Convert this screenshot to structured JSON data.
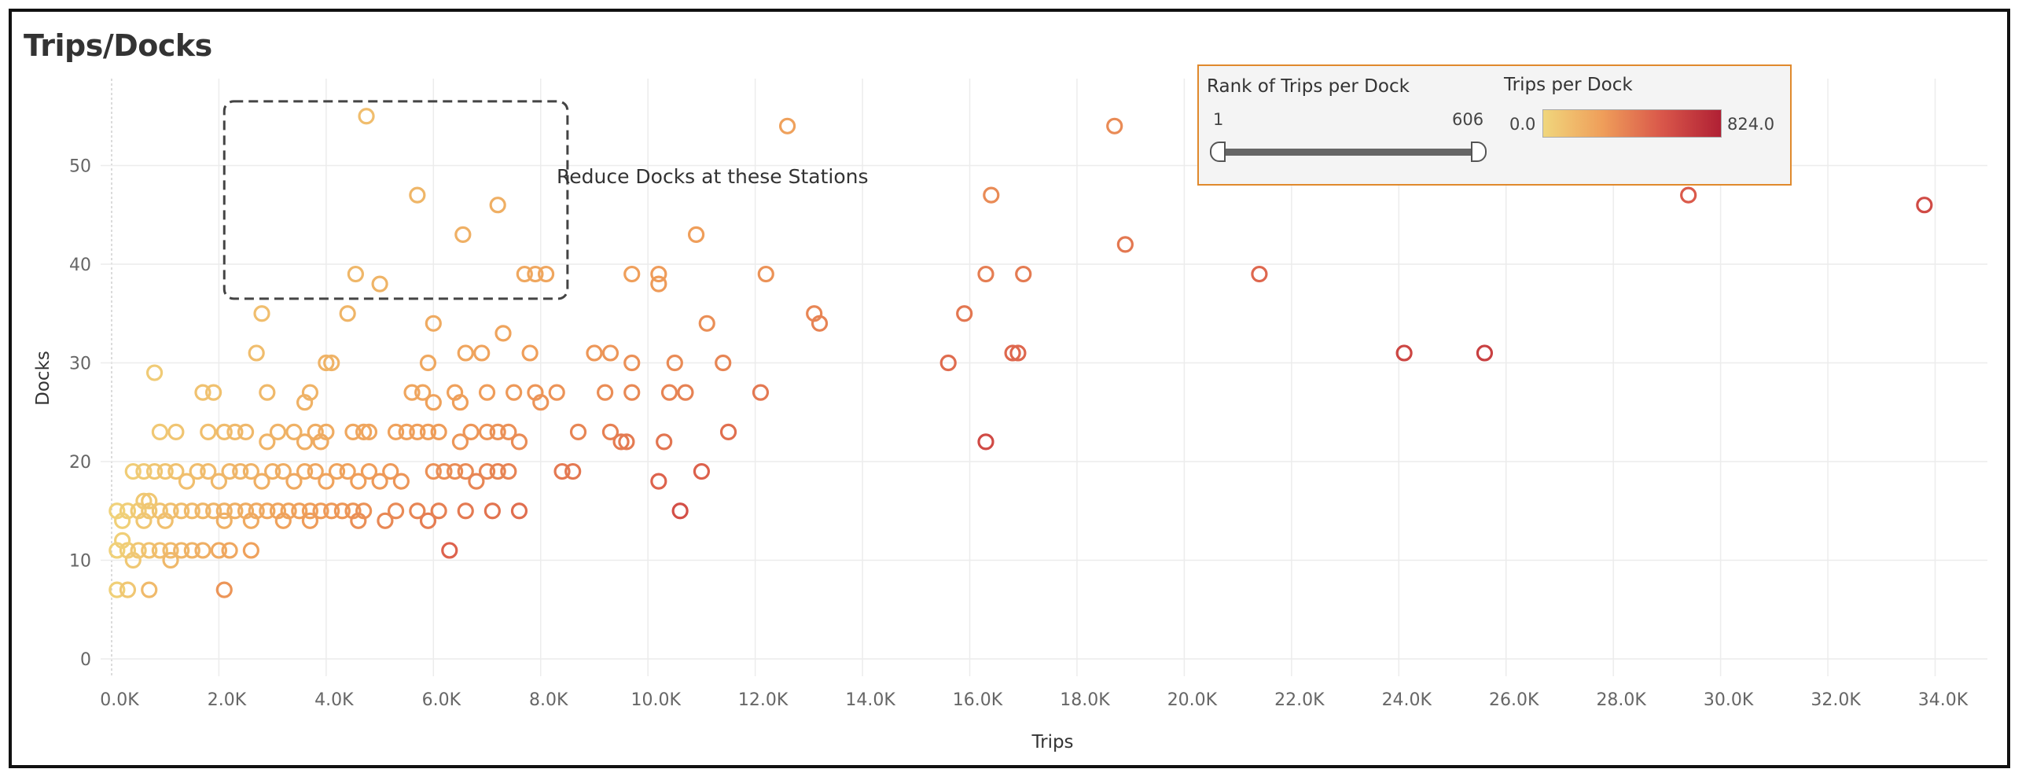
{
  "title": "Trips/Docks",
  "annotation": "Reduce Docks at these Stations",
  "legend": {
    "rank_title": "Rank of Trips per Dock",
    "rank_min": "1",
    "rank_max": "606",
    "color_title": "Trips per Dock",
    "color_min": "0.0",
    "color_max": "824.0"
  },
  "colors": {
    "low": "#f0d67c",
    "mid": "#ef9e5a",
    "high": "#d9574a",
    "max": "#b02034",
    "legend_border": "#e0892c",
    "annotation_box": "#444444"
  },
  "chart_data": {
    "type": "scatter",
    "title": "Trips/Docks",
    "xlabel": "Trips",
    "ylabel": "Docks",
    "xlim": [
      0,
      35500
    ],
    "ylim": [
      -2,
      58
    ],
    "x_ticks": [
      "0.0K",
      "2.0K",
      "4.0K",
      "6.0K",
      "8.0K",
      "10.0K",
      "12.0K",
      "14.0K",
      "16.0K",
      "18.0K",
      "20.0K",
      "22.0K",
      "24.0K",
      "26.0K",
      "28.0K",
      "30.0K",
      "32.0K",
      "34.0K"
    ],
    "y_ticks": [
      "0",
      "10",
      "20",
      "30",
      "40",
      "50"
    ],
    "grid": true,
    "marker": "hollow-circle",
    "color_by": "Trips per Dock",
    "highlight_region": {
      "x": [
        2100,
        8500
      ],
      "y": [
        36.5,
        56.5
      ]
    },
    "points": [
      {
        "x": 4750,
        "y": 55
      },
      {
        "x": 5700,
        "y": 47
      },
      {
        "x": 6550,
        "y": 43
      },
      {
        "x": 7200,
        "y": 46
      },
      {
        "x": 4550,
        "y": 39
      },
      {
        "x": 5000,
        "y": 38
      },
      {
        "x": 7700,
        "y": 39
      },
      {
        "x": 7900,
        "y": 39
      },
      {
        "x": 8100,
        "y": 39
      },
      {
        "x": 2800,
        "y": 35
      },
      {
        "x": 4400,
        "y": 35
      },
      {
        "x": 6000,
        "y": 34
      },
      {
        "x": 2700,
        "y": 31
      },
      {
        "x": 4000,
        "y": 30
      },
      {
        "x": 4100,
        "y": 30
      },
      {
        "x": 5900,
        "y": 30
      },
      {
        "x": 6600,
        "y": 31
      },
      {
        "x": 6900,
        "y": 31
      },
      {
        "x": 7300,
        "y": 33
      },
      {
        "x": 7800,
        "y": 31
      },
      {
        "x": 800,
        "y": 29
      },
      {
        "x": 1700,
        "y": 27
      },
      {
        "x": 1900,
        "y": 27
      },
      {
        "x": 2900,
        "y": 27
      },
      {
        "x": 3700,
        "y": 27
      },
      {
        "x": 5600,
        "y": 27
      },
      {
        "x": 5800,
        "y": 27
      },
      {
        "x": 6400,
        "y": 27
      },
      {
        "x": 7000,
        "y": 27
      },
      {
        "x": 7500,
        "y": 27
      },
      {
        "x": 7900,
        "y": 27
      },
      {
        "x": 8300,
        "y": 27
      },
      {
        "x": 8000,
        "y": 26
      },
      {
        "x": 6000,
        "y": 26
      },
      {
        "x": 6500,
        "y": 26
      },
      {
        "x": 3600,
        "y": 26
      },
      {
        "x": 900,
        "y": 23
      },
      {
        "x": 1200,
        "y": 23
      },
      {
        "x": 1800,
        "y": 23
      },
      {
        "x": 2100,
        "y": 23
      },
      {
        "x": 2300,
        "y": 23
      },
      {
        "x": 2500,
        "y": 23
      },
      {
        "x": 2900,
        "y": 22
      },
      {
        "x": 3100,
        "y": 23
      },
      {
        "x": 3400,
        "y": 23
      },
      {
        "x": 3600,
        "y": 22
      },
      {
        "x": 3800,
        "y": 23
      },
      {
        "x": 3900,
        "y": 22
      },
      {
        "x": 4000,
        "y": 23
      },
      {
        "x": 4500,
        "y": 23
      },
      {
        "x": 4700,
        "y": 23
      },
      {
        "x": 4800,
        "y": 23
      },
      {
        "x": 5300,
        "y": 23
      },
      {
        "x": 5500,
        "y": 23
      },
      {
        "x": 5700,
        "y": 23
      },
      {
        "x": 5900,
        "y": 23
      },
      {
        "x": 6100,
        "y": 23
      },
      {
        "x": 6500,
        "y": 22
      },
      {
        "x": 6700,
        "y": 23
      },
      {
        "x": 7000,
        "y": 23
      },
      {
        "x": 7200,
        "y": 23
      },
      {
        "x": 7400,
        "y": 23
      },
      {
        "x": 7600,
        "y": 22
      },
      {
        "x": 8700,
        "y": 23
      },
      {
        "x": 400,
        "y": 19
      },
      {
        "x": 600,
        "y": 19
      },
      {
        "x": 800,
        "y": 19
      },
      {
        "x": 1000,
        "y": 19
      },
      {
        "x": 1200,
        "y": 19
      },
      {
        "x": 1400,
        "y": 18
      },
      {
        "x": 1600,
        "y": 19
      },
      {
        "x": 1800,
        "y": 19
      },
      {
        "x": 2000,
        "y": 18
      },
      {
        "x": 2200,
        "y": 19
      },
      {
        "x": 2400,
        "y": 19
      },
      {
        "x": 2600,
        "y": 19
      },
      {
        "x": 2800,
        "y": 18
      },
      {
        "x": 3000,
        "y": 19
      },
      {
        "x": 3200,
        "y": 19
      },
      {
        "x": 3400,
        "y": 18
      },
      {
        "x": 3600,
        "y": 19
      },
      {
        "x": 3800,
        "y": 19
      },
      {
        "x": 4000,
        "y": 18
      },
      {
        "x": 4200,
        "y": 19
      },
      {
        "x": 4400,
        "y": 19
      },
      {
        "x": 4600,
        "y": 18
      },
      {
        "x": 4800,
        "y": 19
      },
      {
        "x": 5000,
        "y": 18
      },
      {
        "x": 5200,
        "y": 19
      },
      {
        "x": 5400,
        "y": 18
      },
      {
        "x": 6000,
        "y": 19
      },
      {
        "x": 6200,
        "y": 19
      },
      {
        "x": 6400,
        "y": 19
      },
      {
        "x": 6600,
        "y": 19
      },
      {
        "x": 6800,
        "y": 18
      },
      {
        "x": 7000,
        "y": 19
      },
      {
        "x": 7200,
        "y": 19
      },
      {
        "x": 7400,
        "y": 19
      },
      {
        "x": 8400,
        "y": 19
      },
      {
        "x": 8600,
        "y": 19
      },
      {
        "x": 100,
        "y": 15
      },
      {
        "x": 300,
        "y": 15
      },
      {
        "x": 500,
        "y": 15
      },
      {
        "x": 700,
        "y": 15
      },
      {
        "x": 900,
        "y": 15
      },
      {
        "x": 1100,
        "y": 15
      },
      {
        "x": 1300,
        "y": 15
      },
      {
        "x": 1500,
        "y": 15
      },
      {
        "x": 1700,
        "y": 15
      },
      {
        "x": 1900,
        "y": 15
      },
      {
        "x": 2100,
        "y": 15
      },
      {
        "x": 2300,
        "y": 15
      },
      {
        "x": 2500,
        "y": 15
      },
      {
        "x": 2700,
        "y": 15
      },
      {
        "x": 2900,
        "y": 15
      },
      {
        "x": 3100,
        "y": 15
      },
      {
        "x": 3300,
        "y": 15
      },
      {
        "x": 3500,
        "y": 15
      },
      {
        "x": 3700,
        "y": 15
      },
      {
        "x": 3900,
        "y": 15
      },
      {
        "x": 4100,
        "y": 15
      },
      {
        "x": 4300,
        "y": 15
      },
      {
        "x": 4500,
        "y": 15
      },
      {
        "x": 4700,
        "y": 15
      },
      {
        "x": 5100,
        "y": 14
      },
      {
        "x": 5300,
        "y": 15
      },
      {
        "x": 5700,
        "y": 15
      },
      {
        "x": 5900,
        "y": 14
      },
      {
        "x": 6100,
        "y": 15
      },
      {
        "x": 6600,
        "y": 15
      },
      {
        "x": 7100,
        "y": 15
      },
      {
        "x": 7600,
        "y": 15
      },
      {
        "x": 200,
        "y": 14
      },
      {
        "x": 600,
        "y": 14
      },
      {
        "x": 1000,
        "y": 14
      },
      {
        "x": 2100,
        "y": 14
      },
      {
        "x": 2600,
        "y": 14
      },
      {
        "x": 3200,
        "y": 14
      },
      {
        "x": 3700,
        "y": 14
      },
      {
        "x": 4600,
        "y": 14
      },
      {
        "x": 100,
        "y": 11
      },
      {
        "x": 300,
        "y": 11
      },
      {
        "x": 500,
        "y": 11
      },
      {
        "x": 700,
        "y": 11
      },
      {
        "x": 900,
        "y": 11
      },
      {
        "x": 1100,
        "y": 11
      },
      {
        "x": 1300,
        "y": 11
      },
      {
        "x": 1500,
        "y": 11
      },
      {
        "x": 1700,
        "y": 11
      },
      {
        "x": 2000,
        "y": 11
      },
      {
        "x": 2200,
        "y": 11
      },
      {
        "x": 2600,
        "y": 11
      },
      {
        "x": 1100,
        "y": 10
      },
      {
        "x": 400,
        "y": 10
      },
      {
        "x": 200,
        "y": 12
      },
      {
        "x": 6300,
        "y": 11
      },
      {
        "x": 100,
        "y": 7
      },
      {
        "x": 300,
        "y": 7
      },
      {
        "x": 700,
        "y": 7
      },
      {
        "x": 2100,
        "y": 7
      },
      {
        "x": 600,
        "y": 16
      },
      {
        "x": 700,
        "y": 16
      },
      {
        "x": 9000,
        "y": 31
      },
      {
        "x": 9300,
        "y": 31
      },
      {
        "x": 9700,
        "y": 30
      },
      {
        "x": 10500,
        "y": 30
      },
      {
        "x": 9200,
        "y": 27
      },
      {
        "x": 9700,
        "y": 27
      },
      {
        "x": 10400,
        "y": 27
      },
      {
        "x": 10700,
        "y": 27
      },
      {
        "x": 9300,
        "y": 23
      },
      {
        "x": 9500,
        "y": 22
      },
      {
        "x": 9600,
        "y": 22
      },
      {
        "x": 10300,
        "y": 22
      },
      {
        "x": 10200,
        "y": 18
      },
      {
        "x": 11000,
        "y": 19
      },
      {
        "x": 10600,
        "y": 15
      },
      {
        "x": 11500,
        "y": 23
      },
      {
        "x": 9700,
        "y": 39
      },
      {
        "x": 10200,
        "y": 39
      },
      {
        "x": 10200,
        "y": 38
      },
      {
        "x": 10900,
        "y": 43
      },
      {
        "x": 11100,
        "y": 34
      },
      {
        "x": 11400,
        "y": 30
      },
      {
        "x": 12200,
        "y": 39
      },
      {
        "x": 12100,
        "y": 27
      },
      {
        "x": 12600,
        "y": 54
      },
      {
        "x": 13100,
        "y": 35
      },
      {
        "x": 13200,
        "y": 34
      },
      {
        "x": 15600,
        "y": 30
      },
      {
        "x": 15900,
        "y": 35
      },
      {
        "x": 16300,
        "y": 39
      },
      {
        "x": 16400,
        "y": 47
      },
      {
        "x": 16800,
        "y": 31
      },
      {
        "x": 16900,
        "y": 31
      },
      {
        "x": 17000,
        "y": 39
      },
      {
        "x": 16300,
        "y": 22
      },
      {
        "x": 18700,
        "y": 54
      },
      {
        "x": 18900,
        "y": 42
      },
      {
        "x": 21400,
        "y": 39
      },
      {
        "x": 24100,
        "y": 31
      },
      {
        "x": 25600,
        "y": 31
      },
      {
        "x": 29400,
        "y": 47
      },
      {
        "x": 33800,
        "y": 46
      }
    ]
  }
}
